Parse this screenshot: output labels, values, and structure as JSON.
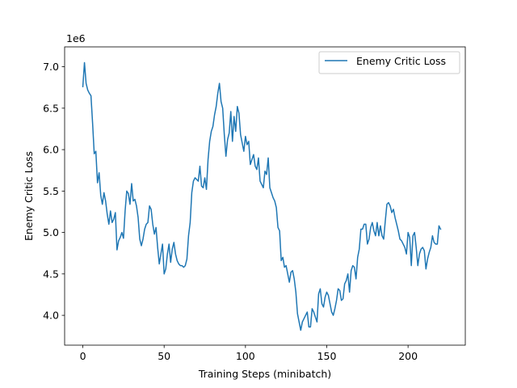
{
  "chart_data": {
    "type": "line",
    "title": "",
    "xlabel": "Training Steps (minibatch)",
    "ylabel": "Enemy Critic Loss",
    "y_offset_label": "1e6",
    "xlim": [
      -11.2,
      235.2
    ],
    "ylim": [
      3.64,
      7.24
    ],
    "x_ticks": [
      0,
      50,
      100,
      150,
      200
    ],
    "x_tick_labels": [
      "0",
      "50",
      "100",
      "150",
      "200"
    ],
    "y_ticks": [
      4.0,
      4.5,
      5.0,
      5.5,
      6.0,
      6.5,
      7.0
    ],
    "y_tick_labels": [
      "4.0",
      "4.5",
      "5.0",
      "5.5",
      "6.0",
      "6.5",
      "7.0"
    ],
    "grid": false,
    "legend_position": "upper-right",
    "series": [
      {
        "name": "Enemy Critic Loss",
        "color": "#1f77b4",
        "values": [
          6.76,
          7.05,
          6.8,
          6.72,
          6.68,
          6.65,
          6.32,
          5.95,
          5.98,
          5.6,
          5.72,
          5.45,
          5.34,
          5.48,
          5.38,
          5.22,
          5.1,
          5.26,
          5.12,
          5.16,
          5.24,
          4.79,
          4.9,
          4.94,
          5.0,
          4.93,
          5.26,
          5.5,
          5.47,
          5.34,
          5.59,
          5.38,
          5.4,
          5.32,
          5.18,
          4.92,
          4.84,
          4.92,
          5.04,
          5.1,
          5.12,
          5.32,
          5.28,
          5.1,
          4.98,
          5.06,
          4.82,
          4.62,
          4.74,
          4.86,
          4.5,
          4.56,
          4.74,
          4.86,
          4.64,
          4.8,
          4.88,
          4.74,
          4.66,
          4.62,
          4.6,
          4.6,
          4.58,
          4.6,
          4.68,
          4.96,
          5.12,
          5.48,
          5.62,
          5.66,
          5.64,
          5.62,
          5.8,
          5.56,
          5.54,
          5.66,
          5.52,
          5.88,
          6.1,
          6.22,
          6.28,
          6.42,
          6.52,
          6.68,
          6.8,
          6.58,
          6.5,
          6.18,
          5.92,
          6.12,
          6.2,
          6.46,
          6.1,
          6.4,
          6.22,
          6.52,
          6.44,
          6.18,
          6.08,
          5.98,
          6.16,
          6.06,
          6.1,
          5.82,
          5.88,
          5.94,
          5.8,
          5.76,
          5.9,
          5.62,
          5.58,
          5.54,
          5.74,
          5.7,
          5.9,
          5.54,
          5.48,
          5.42,
          5.38,
          5.3,
          5.06,
          5.02,
          4.66,
          4.7,
          4.58,
          4.6,
          4.5,
          4.4,
          4.52,
          4.54,
          4.44,
          4.28,
          4.02,
          3.92,
          3.82,
          3.92,
          3.96,
          4.0,
          4.04,
          3.86,
          3.86,
          4.08,
          4.04,
          3.98,
          3.92,
          4.26,
          4.32,
          4.14,
          4.1,
          4.22,
          4.28,
          4.24,
          4.14,
          4.04,
          4.0,
          4.08,
          4.18,
          4.32,
          4.3,
          4.18,
          4.2,
          4.38,
          4.42,
          4.5,
          4.28,
          4.54,
          4.6,
          4.58,
          4.44,
          4.7,
          4.8,
          5.04,
          5.04,
          5.1,
          5.1,
          4.86,
          4.92,
          5.06,
          5.12,
          5.02,
          4.96,
          5.12,
          4.96,
          5.08,
          4.96,
          4.92,
          5.14,
          5.34,
          5.36,
          5.32,
          5.24,
          5.28,
          5.18,
          5.1,
          5.02,
          4.92,
          4.9,
          4.86,
          4.82,
          4.74,
          5.0,
          4.94,
          4.6,
          4.96,
          5.0,
          4.82,
          4.6,
          4.74,
          4.8,
          4.82,
          4.78,
          4.56,
          4.68,
          4.76,
          4.82,
          4.96,
          4.88,
          4.86,
          4.86,
          5.08,
          5.04
        ]
      }
    ]
  }
}
